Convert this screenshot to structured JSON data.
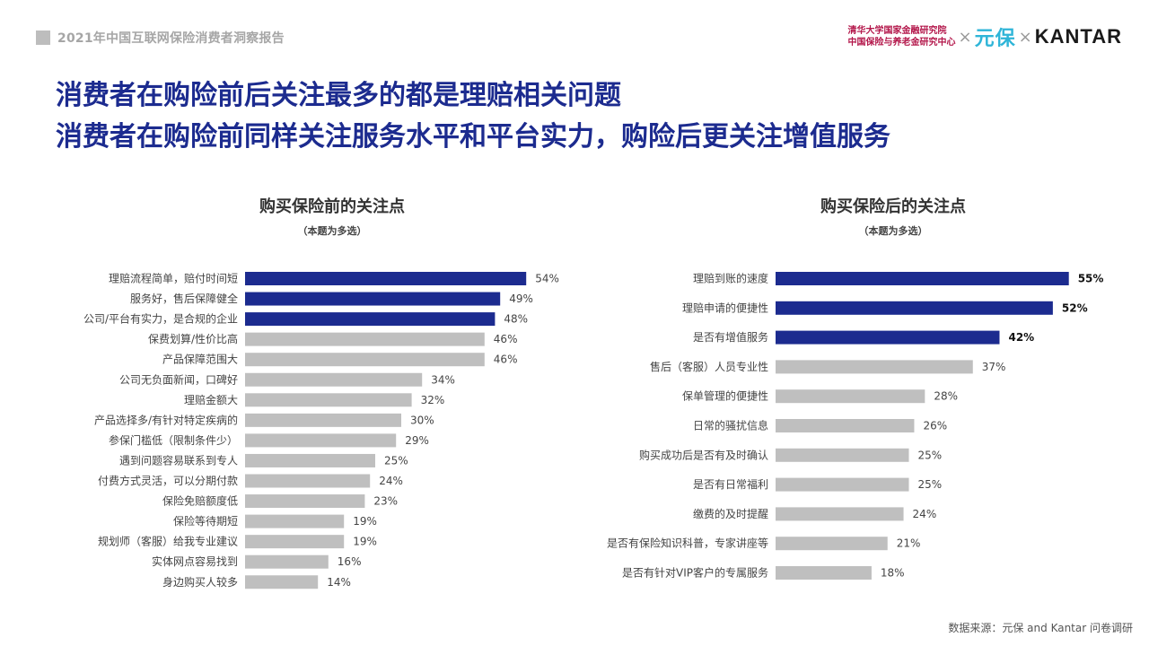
{
  "header": {
    "report_title": "2021年中国互联网保险消费者洞察报告",
    "logo_tsinghua_line1": "清华大学国家金融研究院",
    "logo_tsinghua_line2": "中国保险与养老金研究中心",
    "logo_cross": "×",
    "logo_yuanbao": "元保",
    "logo_kantar": "KANTAR"
  },
  "title_line1": "消费者在购险前后关注最多的都是理赔相关问题",
  "title_line2": "消费者在购险前同样关注服务水平和平台实力，购险后更关注增值服务",
  "colors": {
    "highlight": "#1c2b8f",
    "normal": "#bfbfbf"
  },
  "chart_data": [
    {
      "type": "bar",
      "orientation": "horizontal",
      "title": "购买保险前的关注点",
      "subtitle": "（本题为多选）",
      "unit": "%",
      "highlight_count": 3,
      "categories": [
        "理赔流程简单，赔付时间短",
        "服务好，售后保障健全",
        "公司/平台有实力，是合规的企业",
        "保费划算/性价比高",
        "产品保障范围大",
        "公司无负面新闻，口碑好",
        "理赔金额大",
        "产品选择多/有针对特定疾病的",
        "参保门槛低（限制条件少）",
        "遇到问题容易联系到专人",
        "付费方式灵活，可以分期付款",
        "保险免赔额度低",
        "保险等待期短",
        "规划师（客服）给我专业建议",
        "实体网点容易找到",
        "身边购买人较多"
      ],
      "values": [
        54,
        49,
        48,
        46,
        46,
        34,
        32,
        30,
        29,
        25,
        24,
        23,
        19,
        19,
        16,
        14
      ]
    },
    {
      "type": "bar",
      "orientation": "horizontal",
      "title": "购买保险后的关注点",
      "subtitle": "（本题为多选）",
      "unit": "%",
      "highlight_count": 3,
      "categories": [
        "理赔到账的速度",
        "理赔申请的便捷性",
        "是否有增值服务",
        "售后（客服）人员专业性",
        "保单管理的便捷性",
        "日常的骚扰信息",
        "购买成功后是否有及时确认",
        "是否有日常福利",
        "缴费的及时提醒",
        "是否有保险知识科普，专家讲座等",
        "是否有针对VIP客户的专属服务"
      ],
      "values": [
        55,
        52,
        42,
        37,
        28,
        26,
        25,
        25,
        24,
        21,
        18
      ]
    }
  ],
  "source": "数据来源：元保 and Kantar 问卷调研"
}
